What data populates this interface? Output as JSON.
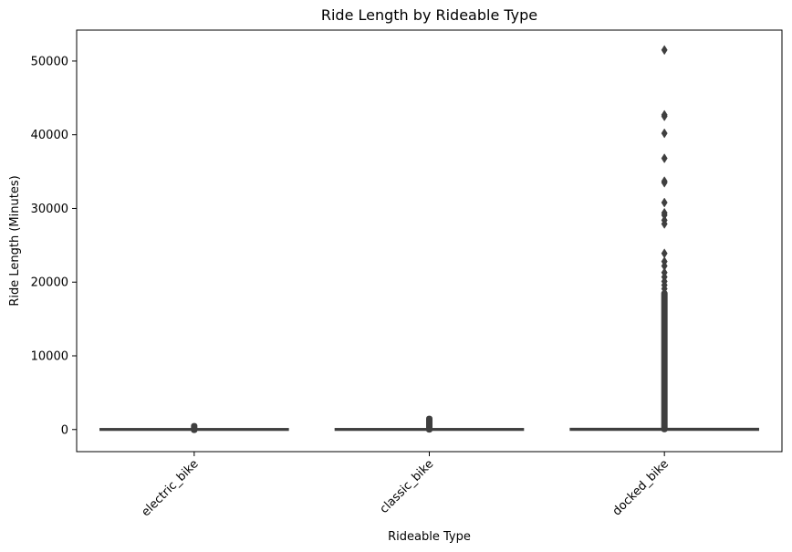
{
  "chart_data": {
    "type": "box",
    "title": "Ride Length by Rideable Type",
    "xlabel": "Rideable Type",
    "ylabel": "Ride Length (Minutes)",
    "ylim": [
      -3000,
      54200
    ],
    "yticks": [
      0,
      10000,
      20000,
      30000,
      40000,
      50000
    ],
    "yticklabels": [
      "0",
      "10000",
      "20000",
      "30000",
      "40000",
      "50000"
    ],
    "categories": [
      "electric_bike",
      "classic_bike",
      "docked_bike"
    ],
    "grid": false,
    "legend": "none",
    "box_color": "#3f3f3f",
    "boxes": [
      {
        "category": "electric_bike",
        "q1": 6,
        "median": 11,
        "q3": 19,
        "whisker_low": 0,
        "whisker_high": 38,
        "outlier_band": [
          -100,
          520
        ]
      },
      {
        "category": "classic_bike",
        "q1": 7,
        "median": 12,
        "q3": 22,
        "whisker_low": 0,
        "whisker_high": 45,
        "outlier_band": [
          -50,
          1500
        ]
      },
      {
        "category": "docked_bike",
        "q1": 10,
        "median": 20,
        "q3": 45,
        "whisker_low": 0,
        "whisker_high": 100,
        "outlier_band": [
          0,
          18500
        ],
        "outliers": [
          51500,
          42700,
          42500,
          40200,
          36800,
          33700,
          33500,
          30800,
          29400,
          29100,
          28400,
          27900,
          23900,
          22800,
          22200,
          21300,
          20700,
          20100,
          19600,
          19100
        ]
      }
    ]
  }
}
